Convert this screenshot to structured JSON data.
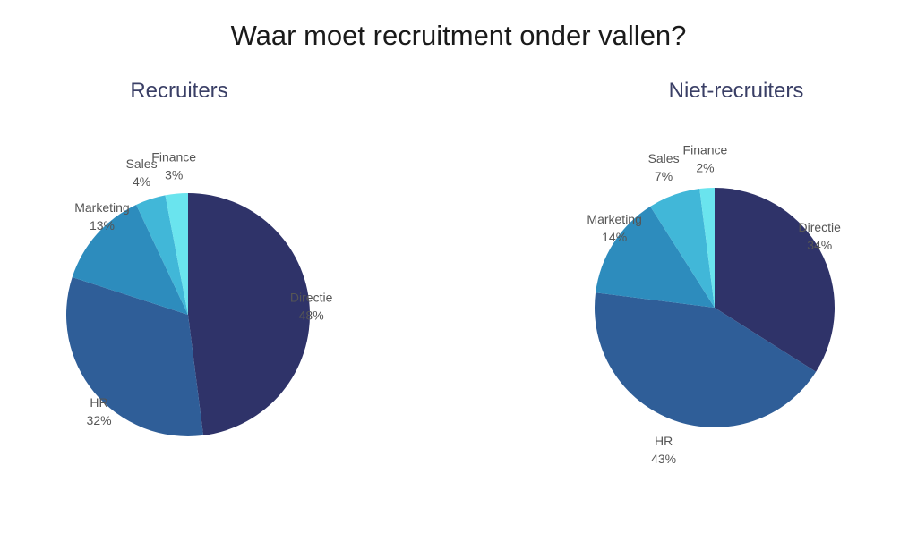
{
  "title": "Waar moet recruitment onder vallen?",
  "chart_data": [
    {
      "type": "pie",
      "title": "Recruiters",
      "slices": [
        {
          "label": "Directie",
          "value": 48,
          "value_label": "48%",
          "color": "#2f3369"
        },
        {
          "label": "HR",
          "value": 32,
          "value_label": "32%",
          "color": "#2f5e98"
        },
        {
          "label": "Marketing",
          "value": 13,
          "value_label": "13%",
          "color": "#2d8cbd"
        },
        {
          "label": "Sales",
          "value": 4,
          "value_label": "4%",
          "color": "#41b7d8"
        },
        {
          "label": "Finance",
          "value": 3,
          "value_label": "3%",
          "color": "#6ae4ee"
        }
      ]
    },
    {
      "type": "pie",
      "title": "Niet-recruiters",
      "slices": [
        {
          "label": "Directie",
          "value": 34,
          "value_label": "34%",
          "color": "#2f3369"
        },
        {
          "label": "HR",
          "value": 43,
          "value_label": "43%",
          "color": "#2f5e98"
        },
        {
          "label": "Marketing",
          "value": 14,
          "value_label": "14%",
          "color": "#2d8cbd"
        },
        {
          "label": "Sales",
          "value": 7,
          "value_label": "7%",
          "color": "#41b7d8"
        },
        {
          "label": "Finance",
          "value": 2,
          "value_label": "2%",
          "color": "#6ae4ee"
        }
      ]
    }
  ]
}
